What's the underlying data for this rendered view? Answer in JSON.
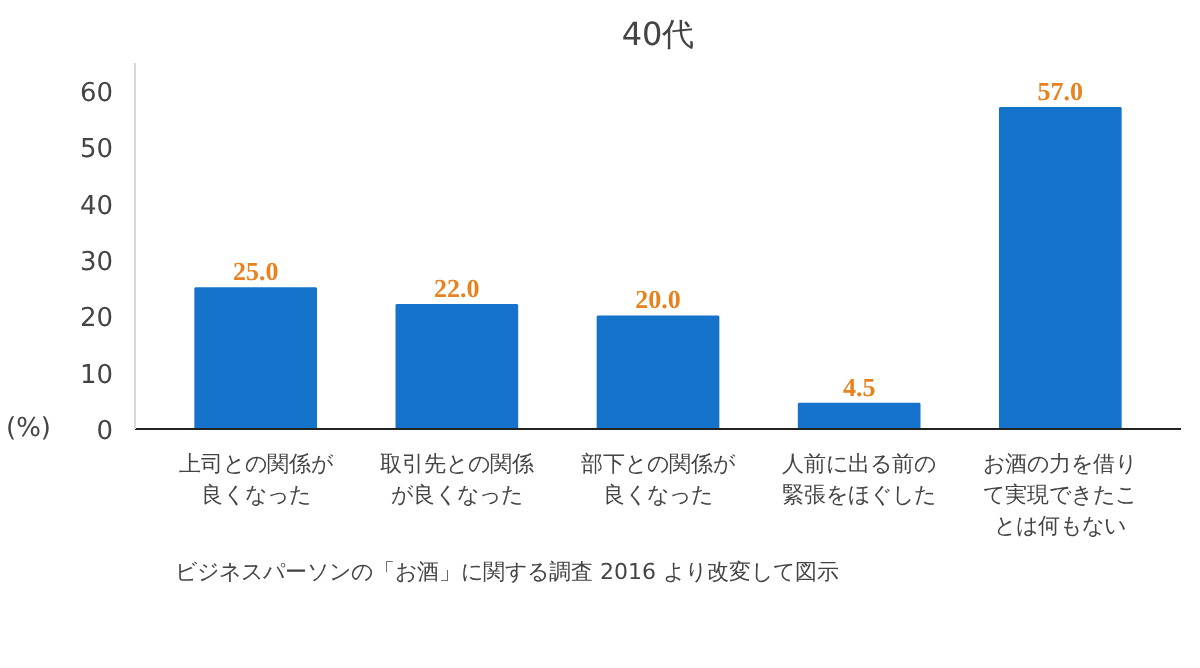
{
  "chart_data": {
    "type": "bar",
    "title": "40代",
    "ylabel": "(%)",
    "categories": [
      "上司との関係が良くなった",
      "取引先との関係が良くなった",
      "部下との関係が良くなった",
      "人前に出る前の緊張をほぐした",
      "お酒の力を借りて実現できたことは何もない"
    ],
    "values": [
      25.0,
      22.0,
      20.0,
      4.5,
      57.0
    ],
    "color": "#1673cc",
    "value_labels": [
      "25.0",
      "22.0",
      "20.0",
      "4.5",
      "57.0"
    ],
    "ylim": [
      0,
      65
    ],
    "yticks": [
      0,
      10,
      20,
      30,
      40,
      50,
      60
    ],
    "grid": false,
    "annotations": [
      "ビジネスパーソンの「お酒」に関する調査 2016 より改変して図示"
    ]
  }
}
